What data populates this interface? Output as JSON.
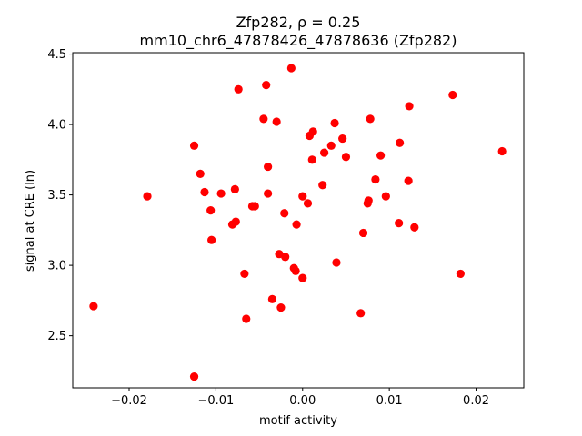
{
  "chart_data": {
    "type": "scatter",
    "title_line1": "Zfp282, ρ = 0.25",
    "title_line2": "mm10_chr6_47878426_47878636 (Zfp282)",
    "xlabel": "motif activity",
    "ylabel": "signal at CRE (ln)",
    "xlim": [
      -0.0265,
      0.0255
    ],
    "ylim": [
      2.13,
      4.51
    ],
    "xticks": [
      {
        "value": -0.02,
        "label": "−0.02"
      },
      {
        "value": -0.01,
        "label": "−0.01"
      },
      {
        "value": 0.0,
        "label": "0.00"
      },
      {
        "value": 0.01,
        "label": "0.01"
      },
      {
        "value": 0.02,
        "label": "0.02"
      }
    ],
    "yticks": [
      {
        "value": 2.5,
        "label": "2.5"
      },
      {
        "value": 3.0,
        "label": "3.0"
      },
      {
        "value": 3.5,
        "label": "3.5"
      },
      {
        "value": 4.0,
        "label": "4.0"
      },
      {
        "value": 4.5,
        "label": "4.5"
      }
    ],
    "grid": false,
    "marker_color": "#ff0000",
    "points": [
      {
        "x": -0.0241,
        "y": 2.71
      },
      {
        "x": -0.0179,
        "y": 3.49
      },
      {
        "x": -0.0125,
        "y": 3.85
      },
      {
        "x": -0.0125,
        "y": 2.21
      },
      {
        "x": -0.0118,
        "y": 3.65
      },
      {
        "x": -0.0113,
        "y": 3.52
      },
      {
        "x": -0.0106,
        "y": 3.39
      },
      {
        "x": -0.0105,
        "y": 3.18
      },
      {
        "x": -0.0094,
        "y": 3.51
      },
      {
        "x": -0.0081,
        "y": 3.29
      },
      {
        "x": -0.0078,
        "y": 3.54
      },
      {
        "x": -0.0077,
        "y": 3.31
      },
      {
        "x": -0.0074,
        "y": 4.25
      },
      {
        "x": -0.0067,
        "y": 2.94
      },
      {
        "x": -0.0065,
        "y": 2.62
      },
      {
        "x": -0.0058,
        "y": 3.42
      },
      {
        "x": -0.0055,
        "y": 3.42
      },
      {
        "x": -0.0045,
        "y": 4.04
      },
      {
        "x": -0.0042,
        "y": 4.28
      },
      {
        "x": -0.004,
        "y": 3.7
      },
      {
        "x": -0.004,
        "y": 3.51
      },
      {
        "x": -0.0035,
        "y": 2.76
      },
      {
        "x": -0.003,
        "y": 4.02
      },
      {
        "x": -0.0027,
        "y": 3.08
      },
      {
        "x": -0.0025,
        "y": 2.7
      },
      {
        "x": -0.0021,
        "y": 3.37
      },
      {
        "x": -0.002,
        "y": 3.06
      },
      {
        "x": -0.0013,
        "y": 4.4
      },
      {
        "x": -0.001,
        "y": 2.98
      },
      {
        "x": -0.0008,
        "y": 2.96
      },
      {
        "x": -0.0007,
        "y": 3.29
      },
      {
        "x": 0.0,
        "y": 3.49
      },
      {
        "x": 0.0,
        "y": 2.91
      },
      {
        "x": 0.0006,
        "y": 3.44
      },
      {
        "x": 0.0008,
        "y": 3.92
      },
      {
        "x": 0.0011,
        "y": 3.75
      },
      {
        "x": 0.0012,
        "y": 3.95
      },
      {
        "x": 0.0023,
        "y": 3.57
      },
      {
        "x": 0.0025,
        "y": 3.8
      },
      {
        "x": 0.0033,
        "y": 3.85
      },
      {
        "x": 0.0037,
        "y": 4.01
      },
      {
        "x": 0.0039,
        "y": 3.02
      },
      {
        "x": 0.0046,
        "y": 3.9
      },
      {
        "x": 0.005,
        "y": 3.77
      },
      {
        "x": 0.0067,
        "y": 2.66
      },
      {
        "x": 0.007,
        "y": 3.23
      },
      {
        "x": 0.0075,
        "y": 3.44
      },
      {
        "x": 0.0076,
        "y": 3.46
      },
      {
        "x": 0.0078,
        "y": 4.04
      },
      {
        "x": 0.0084,
        "y": 3.61
      },
      {
        "x": 0.009,
        "y": 3.78
      },
      {
        "x": 0.0096,
        "y": 3.49
      },
      {
        "x": 0.0111,
        "y": 3.3
      },
      {
        "x": 0.0112,
        "y": 3.87
      },
      {
        "x": 0.0122,
        "y": 3.6
      },
      {
        "x": 0.0123,
        "y": 4.13
      },
      {
        "x": 0.0129,
        "y": 3.27
      },
      {
        "x": 0.0173,
        "y": 4.21
      },
      {
        "x": 0.0182,
        "y": 2.94
      },
      {
        "x": 0.023,
        "y": 3.81
      }
    ]
  }
}
